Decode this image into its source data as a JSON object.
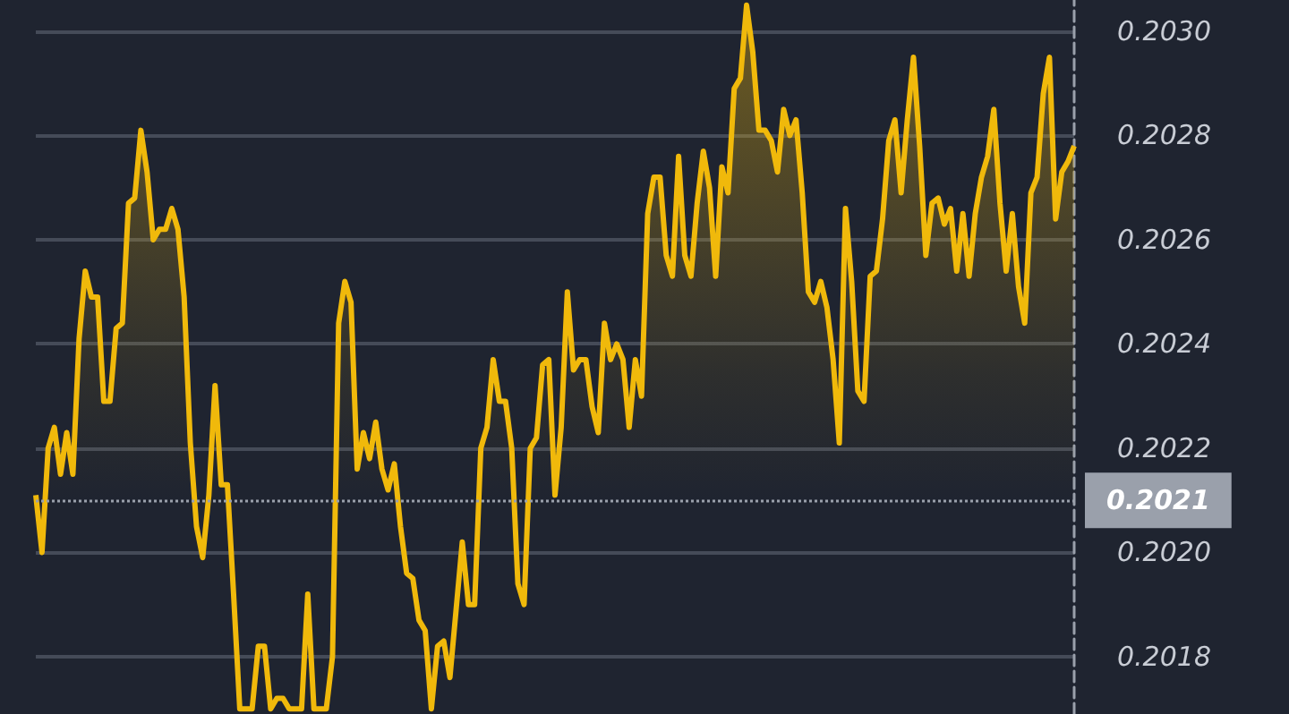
{
  "chart_data": {
    "type": "area",
    "grid": "y",
    "tick_labels": "y",
    "ylim": [
      0.20169,
      0.20306
    ],
    "yticks": [
      {
        "value": 0.2018,
        "label": "0.2018"
      },
      {
        "value": 0.202,
        "label": "0.2020"
      },
      {
        "value": 0.2022,
        "label": "0.2022"
      },
      {
        "value": 0.2024,
        "label": "0.2024"
      },
      {
        "value": 0.2026,
        "label": "0.2026"
      },
      {
        "value": 0.2028,
        "label": "0.2028"
      },
      {
        "value": 0.203,
        "label": "0.2030"
      }
    ],
    "ref_lines": [
      {
        "axis": "y",
        "value": 0.2021,
        "label": "0.2021",
        "color": "#9aa0ab",
        "line_style": "dotted"
      }
    ],
    "categories": [
      null,
      null,
      null,
      null,
      null,
      null,
      null,
      null,
      null,
      null,
      null,
      null,
      null,
      null,
      null,
      null,
      null,
      null,
      null,
      null,
      null,
      null,
      null,
      null,
      null,
      null,
      null,
      null,
      null,
      null,
      null,
      null,
      null,
      null,
      null,
      null,
      null,
      null,
      null,
      null,
      null,
      null,
      null,
      null,
      null,
      null,
      null,
      null,
      null,
      null,
      null,
      null,
      null,
      null,
      null,
      null,
      null,
      null,
      null,
      null,
      null,
      null,
      null,
      null,
      null,
      null,
      null,
      null,
      null,
      null,
      null,
      null,
      null,
      null,
      null,
      null,
      null,
      null,
      null,
      null,
      null,
      null,
      null,
      null,
      null,
      null,
      null,
      null,
      null,
      null,
      null,
      null,
      null,
      null,
      null,
      null,
      null,
      null,
      null,
      null,
      null,
      null,
      null,
      null,
      null,
      null,
      null,
      null,
      null,
      null,
      null,
      null,
      null,
      null,
      null,
      null,
      null,
      null,
      null,
      null,
      null,
      null,
      null,
      null,
      null,
      null,
      null,
      null,
      null,
      null,
      null,
      null,
      null,
      null,
      null,
      null,
      null,
      null,
      null,
      null,
      null,
      null,
      null,
      null,
      null,
      null,
      null,
      null,
      null,
      null,
      null,
      null,
      null,
      null,
      null,
      null,
      null,
      null,
      null,
      null,
      null,
      null,
      null,
      null,
      null,
      null,
      null,
      null,
      null
    ],
    "series": [
      {
        "color": "#f0b90b",
        "values": [
          0.20211,
          0.202,
          0.2022,
          0.20224,
          0.20215,
          0.20223,
          0.20215,
          0.20241,
          0.20254,
          0.20249,
          0.20249,
          0.20229,
          0.20229,
          0.20243,
          0.20244,
          0.20267,
          0.20268,
          0.20281,
          0.20273,
          0.2026,
          0.20262,
          0.20262,
          0.20266,
          0.20262,
          0.20249,
          0.20221,
          0.20205,
          0.20199,
          0.20211,
          0.20232,
          0.20213,
          0.20213,
          0.20192,
          0.2017,
          null,
          0.2017,
          0.20182,
          0.20182,
          0.2017,
          0.20172,
          0.20172,
          0.2017,
          null,
          0.2017,
          0.20192,
          0.2017,
          null,
          0.2017,
          0.2018,
          0.20244,
          0.20252,
          0.20248,
          0.20216,
          0.20223,
          0.20218,
          0.20225,
          0.20216,
          0.20212,
          0.20217,
          0.20205,
          0.20196,
          0.20195,
          0.20187,
          0.20185,
          0.2017,
          0.20182,
          0.20183,
          0.20176,
          0.20189,
          0.20202,
          0.2019,
          0.2019,
          0.2022,
          0.20224,
          0.20237,
          0.20229,
          0.20229,
          0.2022,
          0.20194,
          0.2019,
          0.2022,
          0.20222,
          0.20236,
          0.20237,
          0.20211,
          0.20224,
          0.2025,
          0.20235,
          0.20237,
          0.20237,
          0.20228,
          0.20223,
          0.20244,
          0.20237,
          0.2024,
          0.20237,
          0.20224,
          0.20237,
          0.2023,
          0.20265,
          0.20272,
          0.20272,
          0.20257,
          0.20253,
          0.20276,
          0.20257,
          0.20253,
          0.20267,
          0.20277,
          0.2027,
          0.20253,
          0.20274,
          0.20269,
          0.20289,
          0.20291,
          0.20305,
          0.20296,
          0.20281,
          0.20281,
          0.20279,
          0.20273,
          0.20285,
          0.2028,
          0.20283,
          0.20269,
          0.2025,
          0.20248,
          0.20252,
          0.20247,
          0.20237,
          0.20221,
          0.20266,
          0.20252,
          0.20231,
          0.20229,
          0.20253,
          0.20254,
          0.20264,
          0.20279,
          0.20283,
          0.20269,
          0.20283,
          0.20295,
          0.20278,
          0.20257,
          0.20267,
          0.20268,
          0.20263,
          0.20266,
          0.20254,
          0.20265,
          0.20253,
          0.20265,
          0.20272,
          0.20276,
          0.20285,
          0.20267,
          0.20254,
          0.20265,
          0.20251,
          0.20244,
          0.20269,
          0.20272,
          0.20288,
          0.20295,
          0.20264,
          0.20273,
          0.20275,
          0.20278
        ]
      }
    ]
  }
}
